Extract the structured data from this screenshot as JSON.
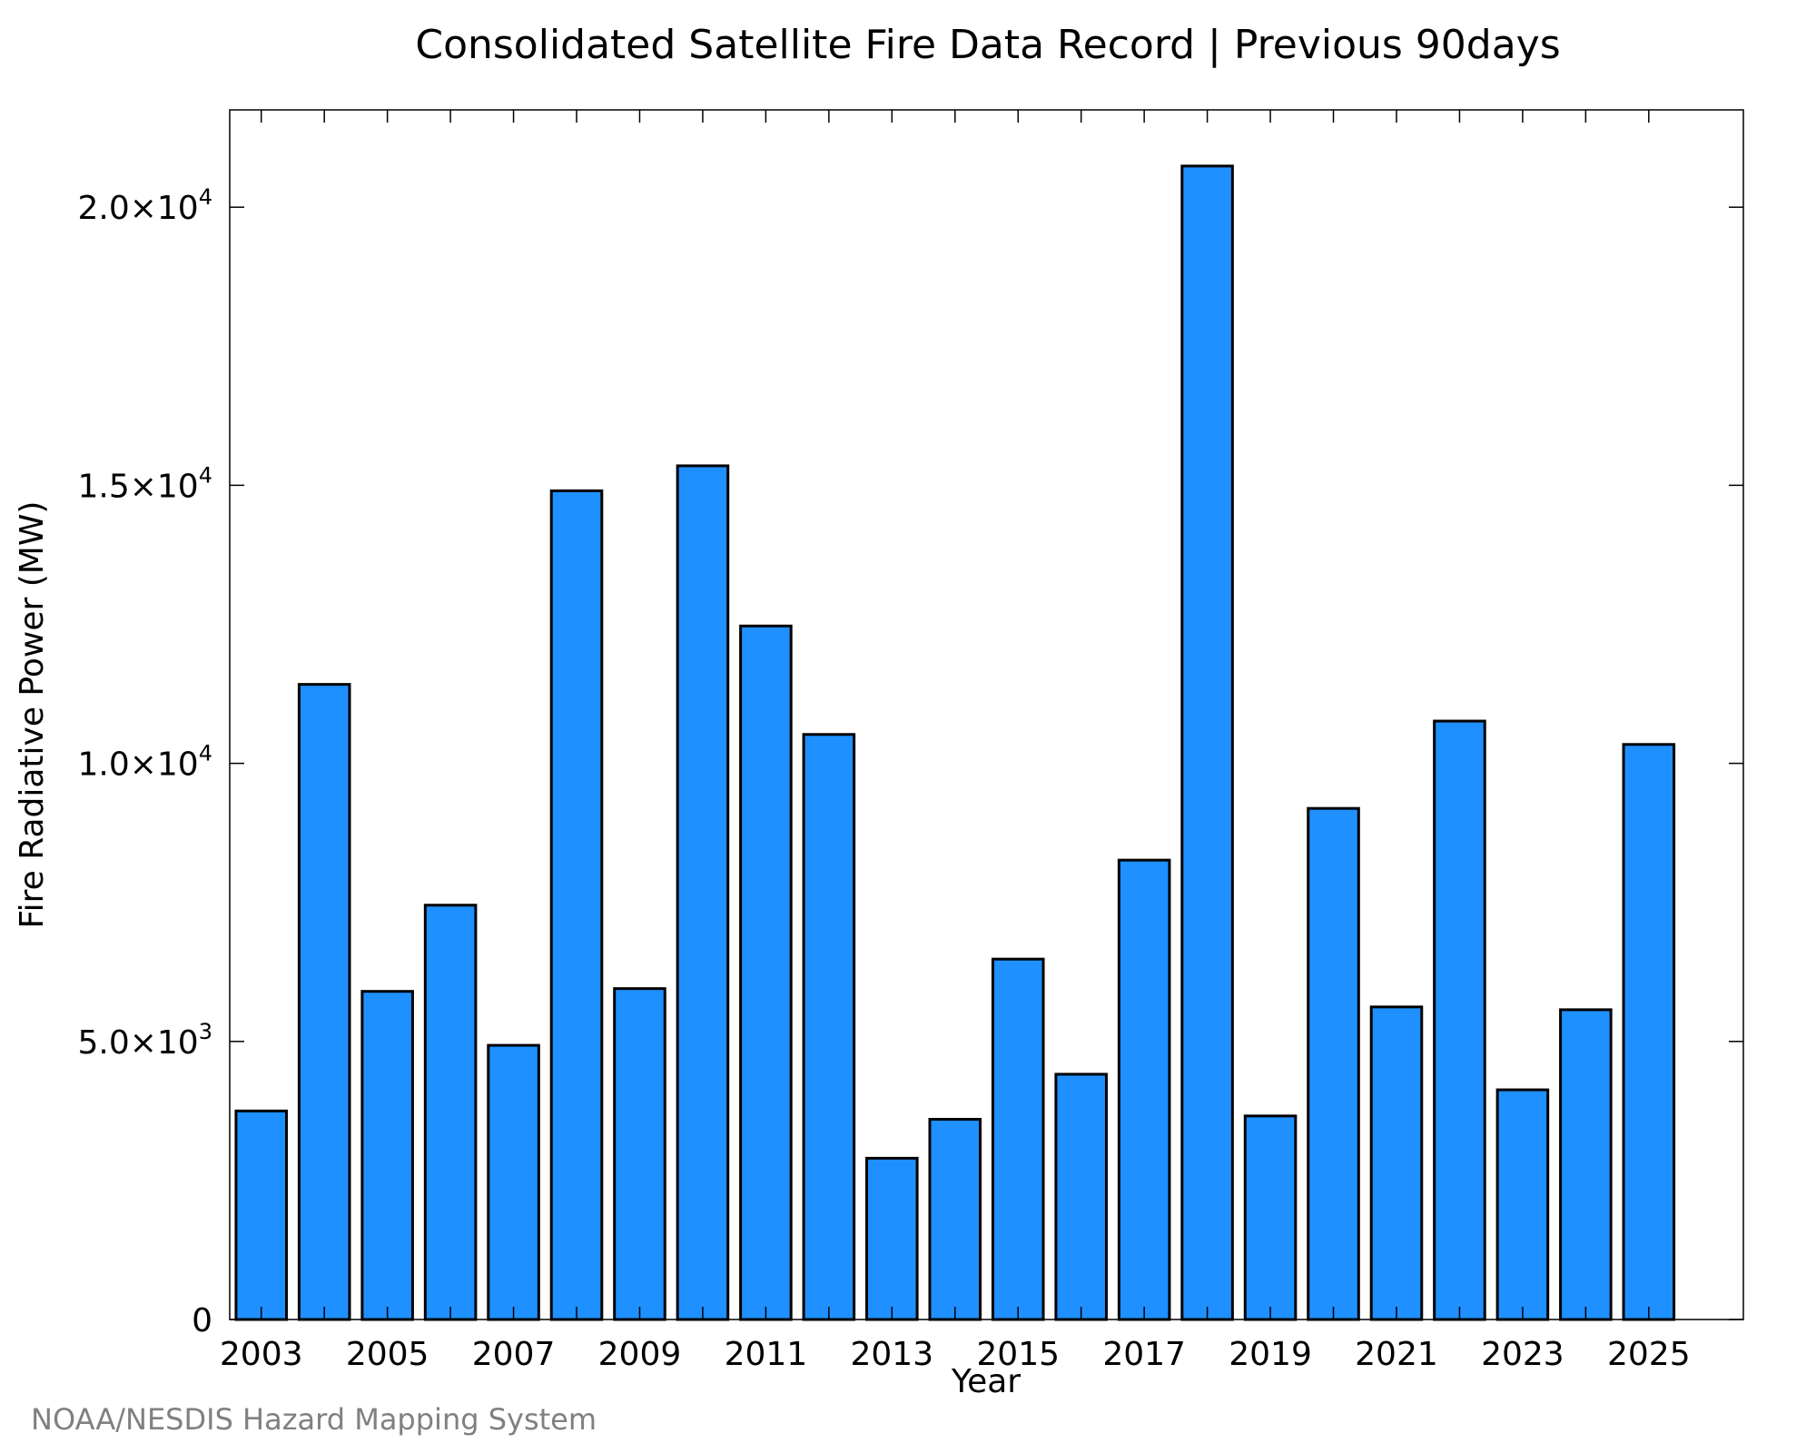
{
  "chart_data": {
    "type": "bar",
    "title": "Consolidated Satellite Fire Data Record | Previous 90days",
    "xlabel": "Year",
    "ylabel": "Fire Radiative Power (MW)",
    "categories": [
      2003,
      2004,
      2005,
      2006,
      2007,
      2008,
      2009,
      2010,
      2011,
      2012,
      2013,
      2014,
      2015,
      2016,
      2017,
      2018,
      2019,
      2020,
      2021,
      2022,
      2023,
      2024,
      2025
    ],
    "values": [
      3750,
      11420,
      5900,
      7450,
      4930,
      14900,
      5950,
      15350,
      12470,
      10520,
      2900,
      3600,
      6480,
      4410,
      8260,
      20740,
      3660,
      9190,
      5620,
      10760,
      4130,
      5570,
      10340
    ],
    "xlim": [
      2002.5,
      2026.5
    ],
    "ylim": [
      0,
      21750
    ],
    "x_tick_labels": [
      "2003",
      "2005",
      "2007",
      "2009",
      "2011",
      "2013",
      "2015",
      "2017",
      "2019",
      "2021",
      "2023",
      "2025"
    ],
    "y_tick_labels": [
      {
        "value": 0,
        "mantissa": "0",
        "exponent": ""
      },
      {
        "value": 5000,
        "mantissa": "5.0×10",
        "exponent": "3"
      },
      {
        "value": 10000,
        "mantissa": "1.0×10",
        "exponent": "4"
      },
      {
        "value": 15000,
        "mantissa": "1.5×10",
        "exponent": "4"
      },
      {
        "value": 20000,
        "mantissa": "2.0×10",
        "exponent": "4"
      }
    ],
    "bar_color": "#1e90ff",
    "grid": false,
    "legend": "none",
    "credit": "NOAA/NESDIS Hazard Mapping System"
  }
}
